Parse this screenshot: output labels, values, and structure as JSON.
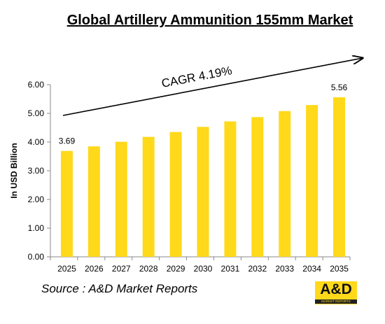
{
  "chart_data": {
    "type": "bar",
    "title": "Global Artillery Ammunition 155mm Market",
    "ylabel": "In USD Billion",
    "xlabel": "",
    "categories": [
      "2025",
      "2026",
      "2027",
      "2028",
      "2029",
      "2030",
      "2031",
      "2032",
      "2033",
      "2034",
      "2035"
    ],
    "values": [
      3.69,
      3.85,
      4.01,
      4.18,
      4.35,
      4.53,
      4.72,
      4.87,
      5.08,
      5.29,
      5.56
    ],
    "data_labels": {
      "first": "3.69",
      "last": "5.56"
    },
    "ylim": [
      0,
      6
    ],
    "yticks": [
      "0.00",
      "1.00",
      "2.00",
      "3.00",
      "4.00",
      "5.00",
      "6.00"
    ],
    "grid": false,
    "bar_color": "#ffd91a",
    "annotation": "CAGR 4.19%"
  },
  "source": "Source : A&D Market Reports",
  "logo": {
    "text": "A&D",
    "subtext": "MARKET REPORTS"
  }
}
